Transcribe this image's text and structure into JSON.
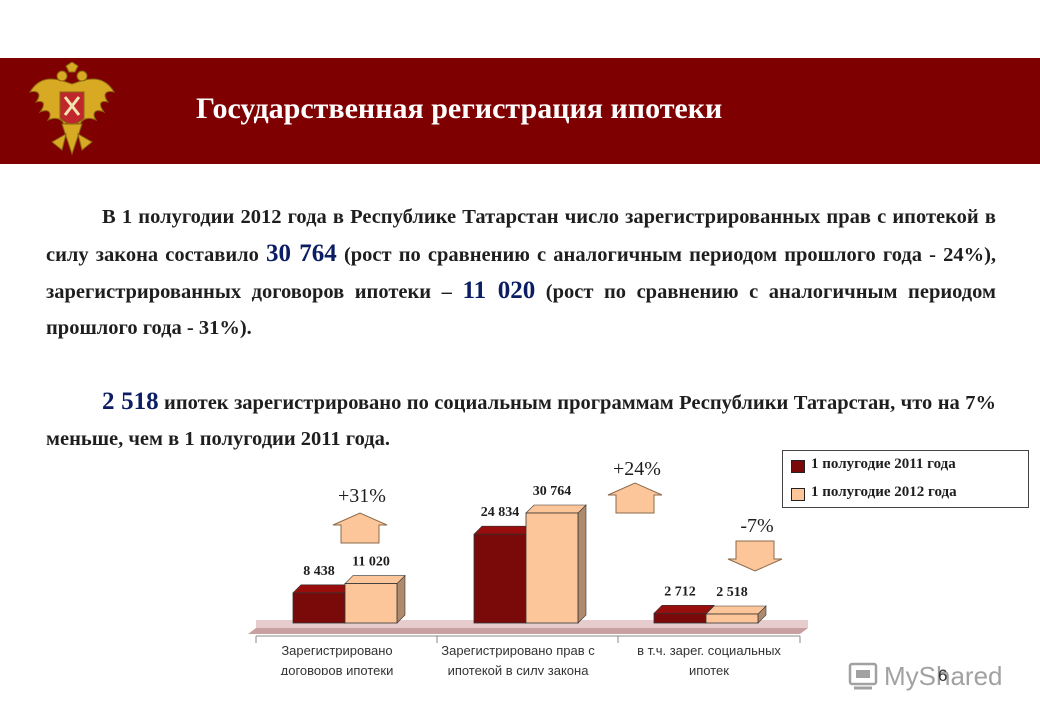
{
  "header": {
    "title": "Государственная регистрация ипотеки",
    "band_color": "#7f0000",
    "emblem": "double-headed-eagle-emblem"
  },
  "body": {
    "p1_a": "В 1 полугодии 2012 года в Республике Татарстан число зарегистрированных прав с ипотекой в силу закона составило ",
    "p1_num1": "30 764",
    "p1_b": " (рост по сравнению с аналогичным периодом прошлого года - 24%), зарегистрированных договоров ипотеки – ",
    "p1_num2": "11 020",
    "p1_c": " (рост по сравнению с аналогичным периодом прошлого года - 31%).",
    "p2_num": "2 518",
    "p2_text": " ипотек зарегистрировано по социальным программам Республики Татарстан, что на 7% меньше, чем в 1 полугодии 2011 года."
  },
  "chart_data": {
    "type": "bar",
    "categories": [
      [
        "Зарегистрировано",
        "договоров ипотеки"
      ],
      [
        "Зарегистрировано прав с",
        "ипотекой в силу закона"
      ],
      [
        "в т.ч. зарег. социальных",
        "ипотек"
      ]
    ],
    "series": [
      {
        "name": "1 полугодие 2011 года",
        "color": "#7a0a0a",
        "values": [
          8438,
          24834,
          2712
        ],
        "labels": [
          "8 438",
          "24 834",
          "2 712"
        ]
      },
      {
        "name": "1 полугодие 2012 года",
        "color": "#fcc59a",
        "values": [
          11020,
          30764,
          2518
        ],
        "labels": [
          "11 020",
          "30 764",
          "2 518"
        ]
      }
    ],
    "changes": [
      {
        "label": "+31%",
        "direction": "up"
      },
      {
        "label": "+24%",
        "direction": "up"
      },
      {
        "label": "-7%",
        "direction": "down"
      }
    ],
    "ylim": [
      0,
      32000
    ],
    "legend_position": "top-right"
  },
  "footer": {
    "page_number": "6",
    "watermark": "MyShared"
  }
}
